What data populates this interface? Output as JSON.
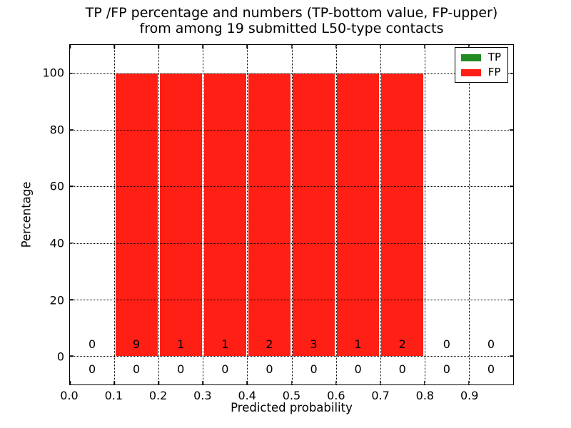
{
  "figure": {
    "title_line1": "TP /FP percentage and numbers (TP-bottom value, FP-upper)",
    "title_line2": "from among 19 submitted L50-type contacts"
  },
  "chart_data": {
    "type": "bar",
    "subtype": "stacked-percentage-histogram",
    "title": "TP /FP percentage and numbers (TP-bottom value, FP-upper)\nfrom among 19 submitted L50-type contacts",
    "xlabel": "Predicted probability",
    "ylabel": "Percentage",
    "xlim": [
      0.0,
      1.0
    ],
    "ylim": [
      -10,
      110
    ],
    "x_tick_labels": [
      "0.0",
      "0.1",
      "0.2",
      "0.3",
      "0.4",
      "0.5",
      "0.6",
      "0.7",
      "0.8",
      "0.9"
    ],
    "y_tick_labels": [
      "0",
      "20",
      "40",
      "60",
      "80",
      "100"
    ],
    "grid": "dotted, drawn above bars",
    "legend_position": "upper-right",
    "bin_edges": [
      0.0,
      0.1,
      0.2,
      0.3,
      0.4,
      0.5,
      0.6,
      0.7,
      0.8,
      0.9,
      1.0
    ],
    "bin_centers": [
      0.05,
      0.15,
      0.25,
      0.35,
      0.45,
      0.55,
      0.65,
      0.75,
      0.85,
      0.95
    ],
    "series": [
      {
        "name": "TP",
        "color": "#228b22",
        "percent": [
          0,
          0,
          0,
          0,
          0,
          0,
          0,
          0,
          0,
          0
        ],
        "counts": [
          0,
          0,
          0,
          0,
          0,
          0,
          0,
          0,
          0,
          0
        ]
      },
      {
        "name": "FP",
        "color": "#ff1f15",
        "percent": [
          0,
          100,
          100,
          100,
          100,
          100,
          100,
          100,
          0,
          0
        ],
        "counts": [
          0,
          9,
          1,
          1,
          2,
          3,
          1,
          2,
          0,
          0
        ]
      }
    ]
  }
}
